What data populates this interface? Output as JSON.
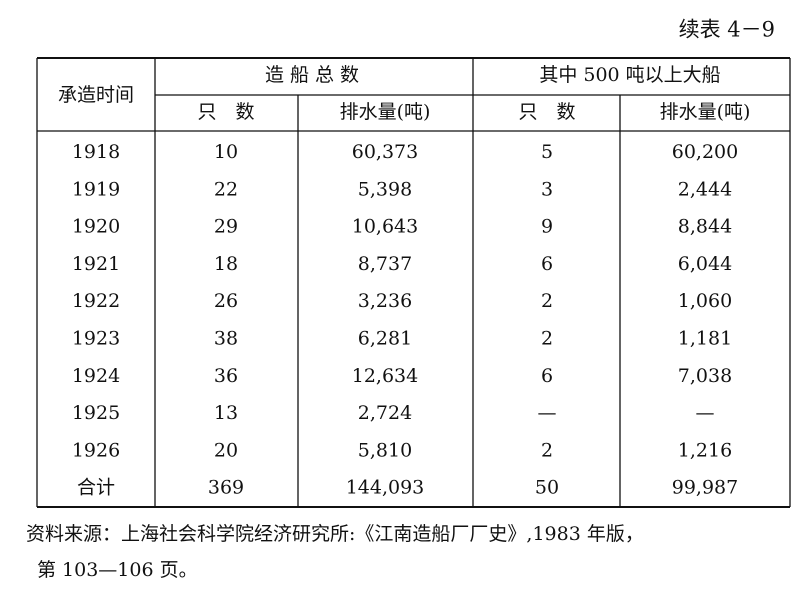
{
  "header": {
    "title": "续表 4－9"
  },
  "table": {
    "head": {
      "period": "承造时间",
      "total_group": "造 船 总 数",
      "large_group": "其中 500 吨以上大船",
      "sub": [
        "只　数",
        "排水量(吨)",
        "只　数",
        "排水量(吨)"
      ]
    },
    "rows": [
      [
        "1918",
        "10",
        "60,373",
        "5",
        "60,200"
      ],
      [
        "1919",
        "22",
        "5,398",
        "3",
        "2,444"
      ],
      [
        "1920",
        "29",
        "10,643",
        "9",
        "8,844"
      ],
      [
        "1921",
        "18",
        "8,737",
        "6",
        "6,044"
      ],
      [
        "1922",
        "26",
        "3,236",
        "2",
        "1,060"
      ],
      [
        "1923",
        "38",
        "6,281",
        "2",
        "1,181"
      ],
      [
        "1924",
        "36",
        "12,634",
        "6",
        "7,038"
      ],
      [
        "1925",
        "13",
        "2,724",
        "—",
        "—"
      ],
      [
        "1926",
        "20",
        "5,810",
        "2",
        "1,216"
      ],
      [
        "合计",
        "369",
        "144,093",
        "50",
        "99,987"
      ]
    ]
  },
  "footnote": [
    "资料来源：上海社会科学院经济研究所:《江南造船厂厂史》,1983 年版，",
    "第 103—106 页。"
  ]
}
